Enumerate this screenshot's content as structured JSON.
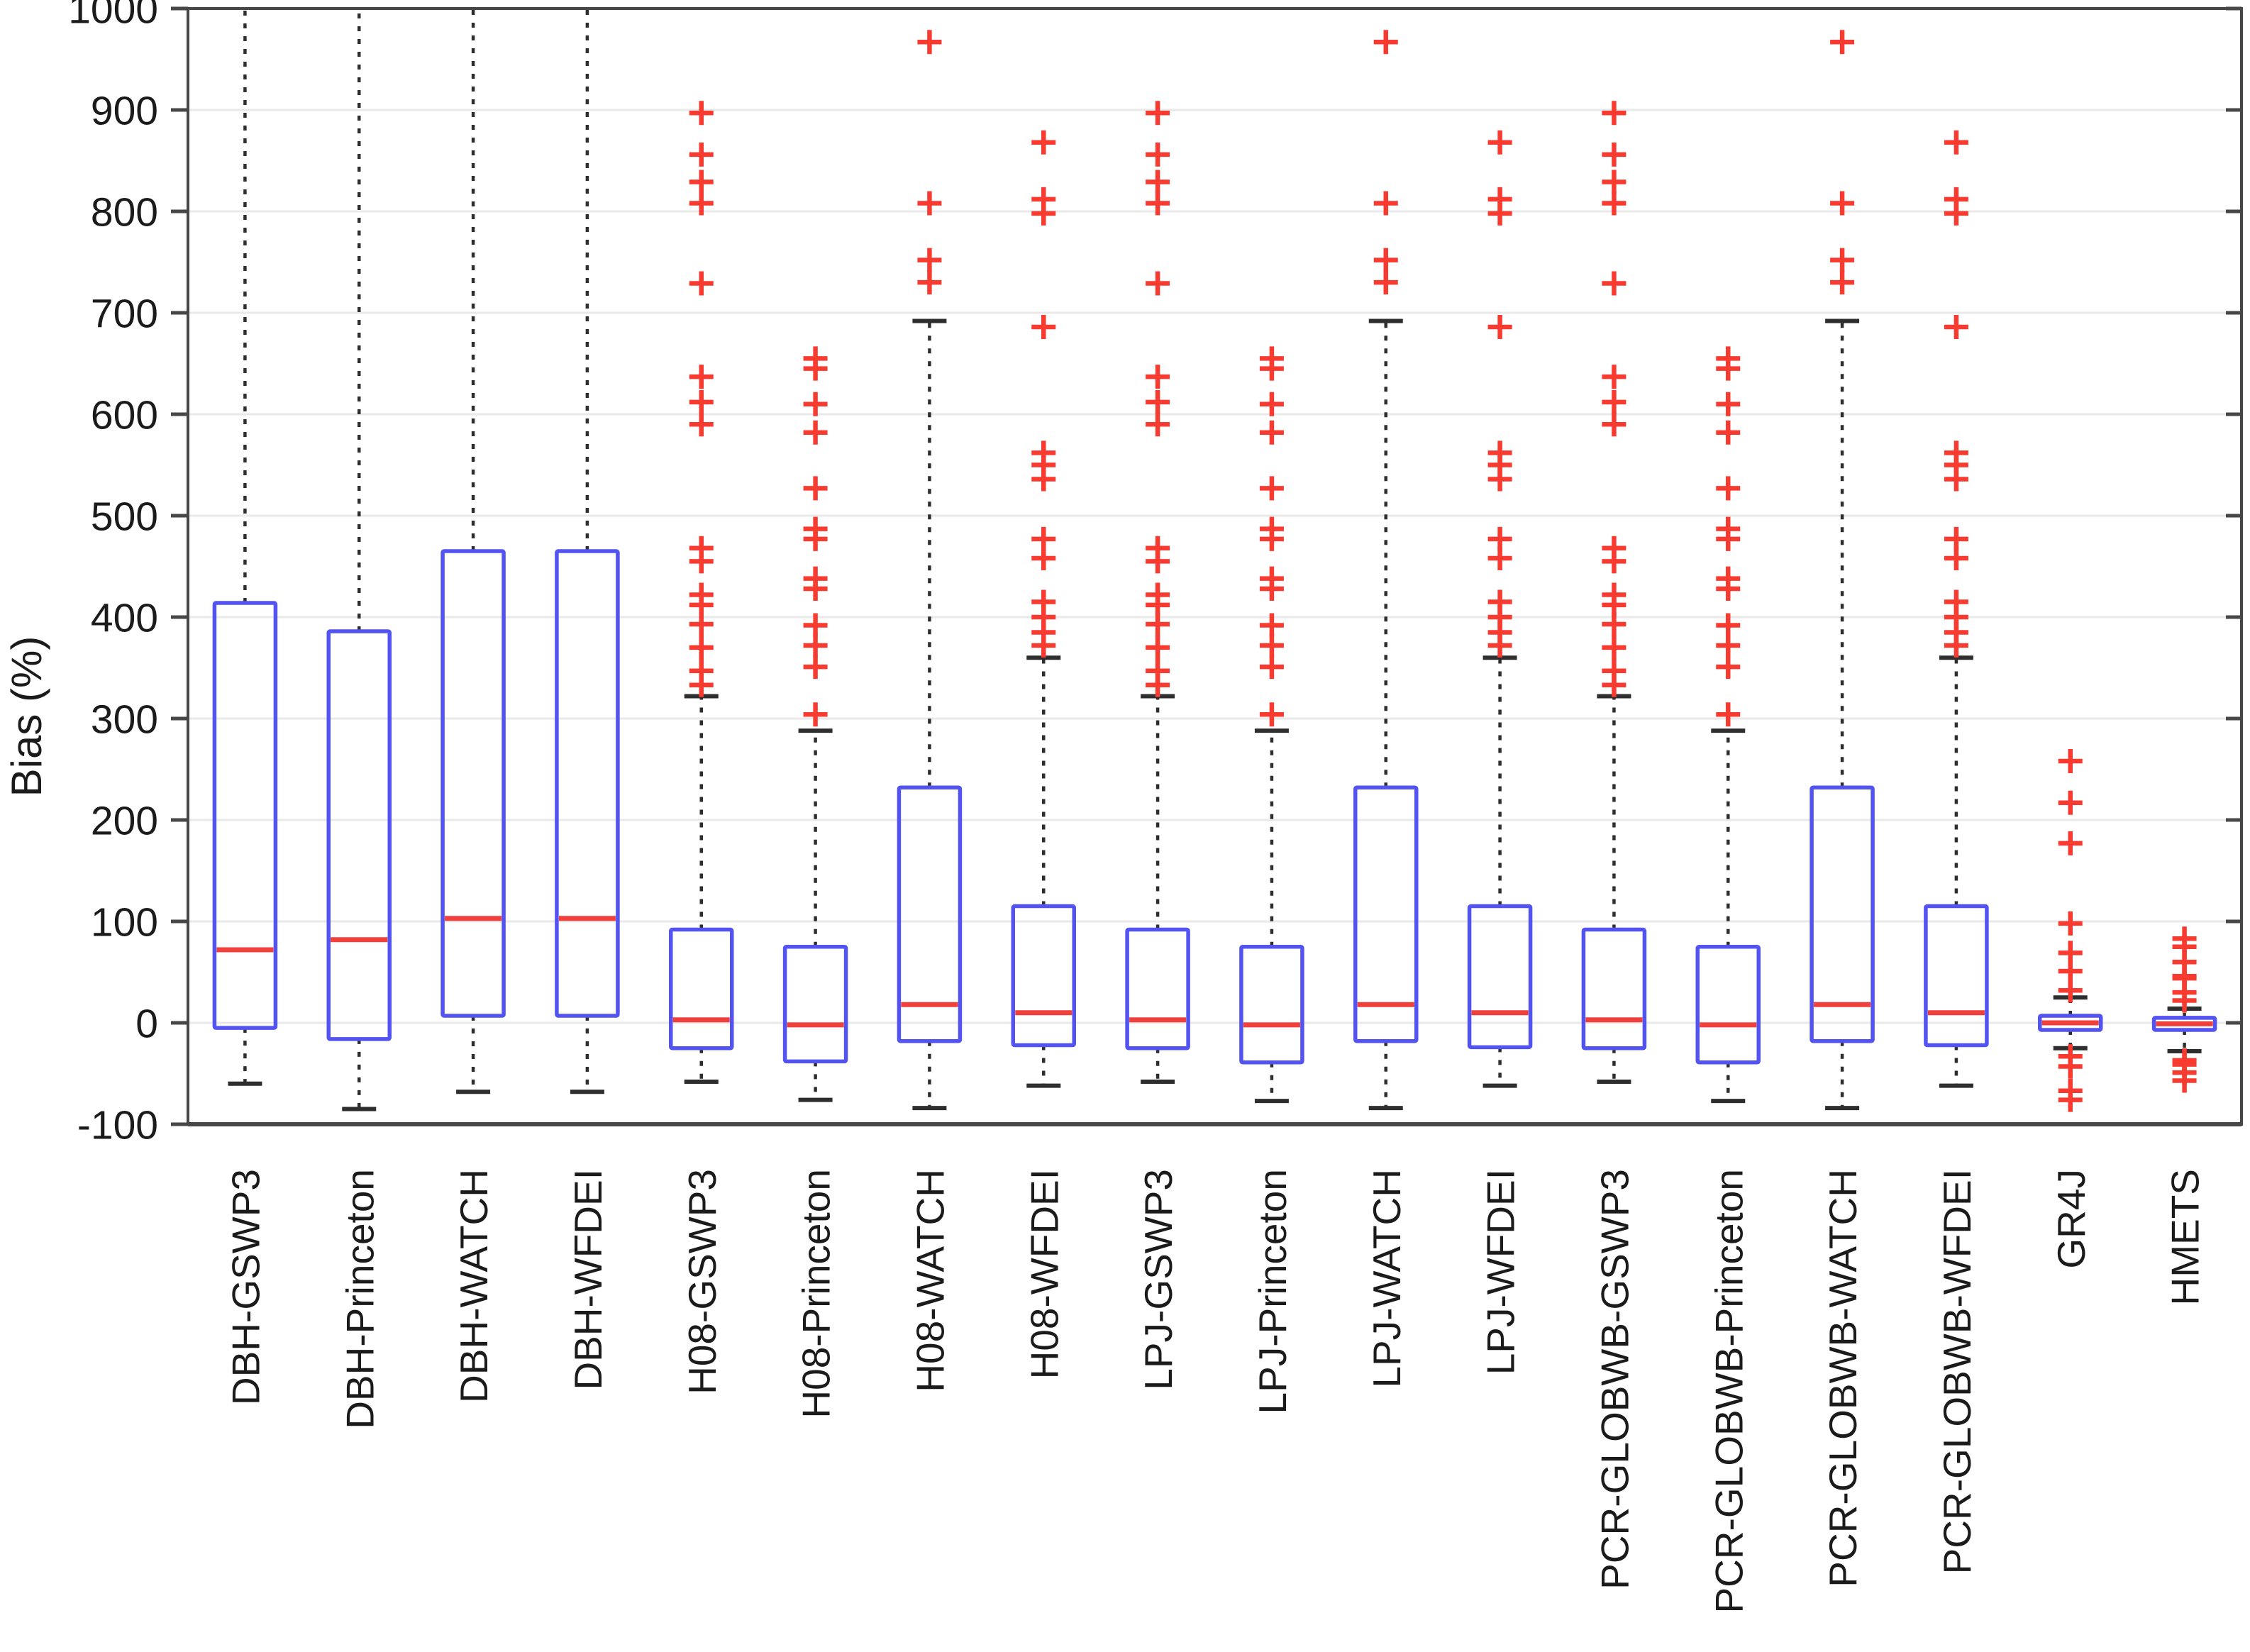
{
  "figure": {
    "title": "",
    "ylabel": "Bias (%)"
  },
  "chart_data": {
    "type": "boxplot",
    "title": "",
    "xlabel": "",
    "ylabel": "Bias (%)",
    "ylim": [
      -100,
      1000
    ],
    "yticks": [
      -100,
      0,
      100,
      200,
      300,
      400,
      500,
      600,
      700,
      800,
      900,
      1000
    ],
    "grid": true,
    "legend": "none",
    "colors": {
      "box": "#5253f0",
      "median": "#ef403c",
      "outlier": "#f73b30",
      "whisker": "#2e2e2e",
      "axis": "#474747",
      "gridline": "#e9e9e9",
      "text": "#1b1b1b",
      "background": "#ffffff"
    },
    "categories": [
      "DBH-GSWP3",
      "DBH-Princeton",
      "DBH-WATCH",
      "DBH-WFDEI",
      "H08-GSWP3",
      "H08-Princeton",
      "H08-WATCH",
      "H08-WFDEI",
      "LPJ-GSWP3",
      "LPJ-Princeton",
      "LPJ-WATCH",
      "LPJ-WFDEI",
      "PCR-GLOBWB-GSWP3",
      "PCR-GLOBWB-Princeton",
      "PCR-GLOBWB-WATCH",
      "PCR-GLOBWB-WFDEI",
      "GR4J",
      "HMETS"
    ],
    "boxes": [
      {
        "label": "DBH-GSWP3",
        "whisker_low": -60,
        "q1": -5,
        "median": 72,
        "q3": 414,
        "whisker_high": 1000,
        "cap_high": false,
        "outliers": []
      },
      {
        "label": "DBH-Princeton",
        "whisker_low": -85,
        "q1": -16,
        "median": 82,
        "q3": 386,
        "whisker_high": 1000,
        "cap_high": false,
        "outliers": []
      },
      {
        "label": "DBH-WATCH",
        "whisker_low": -68,
        "q1": 7,
        "median": 103,
        "q3": 465,
        "whisker_high": 1000,
        "cap_high": false,
        "outliers": []
      },
      {
        "label": "DBH-WFDEI",
        "whisker_low": -68,
        "q1": 7,
        "median": 103,
        "q3": 465,
        "whisker_high": 1000,
        "cap_high": false,
        "outliers": []
      },
      {
        "label": "H08-GSWP3",
        "whisker_low": -58,
        "q1": -25,
        "median": 3,
        "q3": 92,
        "whisker_high": 322,
        "cap_high": true,
        "outliers": [
          897,
          856,
          829,
          808,
          729,
          637,
          612,
          590,
          468,
          455,
          422,
          412,
          393,
          370,
          347,
          333
        ]
      },
      {
        "label": "H08-Princeton",
        "whisker_low": -76,
        "q1": -38,
        "median": -2,
        "q3": 75,
        "whisker_high": 288,
        "cap_high": true,
        "outliers": [
          655,
          645,
          610,
          582,
          527,
          487,
          477,
          438,
          428,
          392,
          372,
          351,
          304
        ]
      },
      {
        "label": "H08-WATCH",
        "whisker_low": -84,
        "q1": -18,
        "median": 18,
        "q3": 232,
        "whisker_high": 692,
        "cap_high": true,
        "outliers": [
          967,
          808,
          752,
          730
        ]
      },
      {
        "label": "H08-WFDEI",
        "whisker_low": -62,
        "q1": -22,
        "median": 10,
        "q3": 115,
        "whisker_high": 360,
        "cap_high": true,
        "outliers": [
          868,
          812,
          798,
          686,
          562,
          550,
          536,
          477,
          458,
          415,
          400,
          385,
          372
        ]
      },
      {
        "label": "LPJ-GSWP3",
        "whisker_low": -58,
        "q1": -25,
        "median": 3,
        "q3": 92,
        "whisker_high": 322,
        "cap_high": true,
        "outliers": [
          897,
          856,
          829,
          808,
          729,
          637,
          612,
          590,
          468,
          455,
          422,
          412,
          393,
          370,
          347,
          333
        ]
      },
      {
        "label": "LPJ-Princeton",
        "whisker_low": -77,
        "q1": -39,
        "median": -2,
        "q3": 75,
        "whisker_high": 288,
        "cap_high": true,
        "outliers": [
          655,
          645,
          610,
          582,
          527,
          487,
          477,
          438,
          428,
          392,
          372,
          351,
          304
        ]
      },
      {
        "label": "LPJ-WATCH",
        "whisker_low": -84,
        "q1": -18,
        "median": 18,
        "q3": 232,
        "whisker_high": 692,
        "cap_high": true,
        "outliers": [
          967,
          808,
          752,
          730
        ]
      },
      {
        "label": "LPJ-WFDEI",
        "whisker_low": -62,
        "q1": -24,
        "median": 10,
        "q3": 115,
        "whisker_high": 360,
        "cap_high": true,
        "outliers": [
          868,
          812,
          798,
          686,
          562,
          550,
          536,
          477,
          458,
          415,
          400,
          385,
          372
        ]
      },
      {
        "label": "PCR-GLOBWB-GSWP3",
        "whisker_low": -58,
        "q1": -25,
        "median": 3,
        "q3": 92,
        "whisker_high": 322,
        "cap_high": true,
        "outliers": [
          897,
          856,
          829,
          808,
          729,
          637,
          612,
          590,
          468,
          455,
          422,
          412,
          393,
          370,
          347,
          333
        ]
      },
      {
        "label": "PCR-GLOBWB-Princeton",
        "whisker_low": -77,
        "q1": -39,
        "median": -2,
        "q3": 75,
        "whisker_high": 288,
        "cap_high": true,
        "outliers": [
          655,
          645,
          610,
          582,
          527,
          487,
          477,
          438,
          428,
          392,
          372,
          351,
          304
        ]
      },
      {
        "label": "PCR-GLOBWB-WATCH",
        "whisker_low": -84,
        "q1": -18,
        "median": 18,
        "q3": 232,
        "whisker_high": 692,
        "cap_high": true,
        "outliers": [
          967,
          808,
          752,
          730
        ]
      },
      {
        "label": "PCR-GLOBWB-WFDEI",
        "whisker_low": -62,
        "q1": -22,
        "median": 10,
        "q3": 115,
        "whisker_high": 360,
        "cap_high": true,
        "outliers": [
          868,
          812,
          798,
          686,
          562,
          550,
          536,
          477,
          458,
          415,
          400,
          385,
          372
        ]
      },
      {
        "label": "GR4J",
        "whisker_low": -25,
        "q1": -7,
        "median": 0,
        "q3": 7,
        "whisker_high": 25,
        "cap_high": true,
        "outliers": [
          258,
          217,
          177,
          98,
          69,
          51,
          32,
          -33,
          -43,
          -67,
          -76
        ]
      },
      {
        "label": "HMETS",
        "whisker_low": -28,
        "q1": -7,
        "median": -1,
        "q3": 5,
        "whisker_high": 14,
        "cap_high": true,
        "outliers": [
          83,
          75,
          60,
          46,
          44,
          30,
          22,
          -37,
          -41,
          -49,
          -57
        ]
      }
    ]
  }
}
